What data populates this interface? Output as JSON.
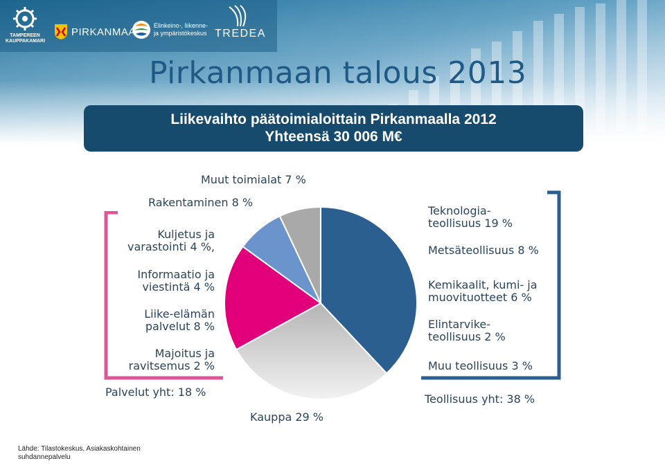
{
  "header": {
    "logos": [
      {
        "icon": "tampere-chamber-logo-icon",
        "text": "TAMPEREEN KAUPPAKAMARI"
      },
      {
        "icon": "pirkanmaa-crest-icon",
        "text": "PIRKANMAA"
      },
      {
        "icon": "ely-centre-logo-icon",
        "text": "Elinkeino-, liikenne- ja ympäristökeskus"
      },
      {
        "icon": "tredea-logo-icon",
        "text": "TREDEA"
      }
    ],
    "title": "Pirkanmaan talous 2013"
  },
  "banner": {
    "line1": "Liikevaihto päätoimialoittain Pirkanmaalla 2012",
    "line2": "Yhteensä 30 006 M€"
  },
  "colors": {
    "banner": "#174b6d",
    "teollisuus": "#2a5f8f",
    "kauppa": "#c8c8c8",
    "palvelut": "#e2007a",
    "rakentaminen": "#6b93cc",
    "muut": "#a9a9a9",
    "palvelut_bracket": "#e0559a",
    "teollisuus_bracket": "#2a5f8f"
  },
  "chart_data": {
    "type": "pie",
    "title": "Liikevaihto päätoimialoittain Pirkanmaalla 2012",
    "subtitle": "Yhteensä 30 006 M€",
    "slices": [
      {
        "label": "Teollisuus yht: 38 %",
        "value": 38
      },
      {
        "label": "Kauppa 29 %",
        "value": 29
      },
      {
        "label": "Palvelut yht: 18 %",
        "value": 18
      },
      {
        "label": "Rakentaminen 8 %",
        "value": 8
      },
      {
        "label": "Muut toimialat 7 %",
        "value": 7
      }
    ],
    "palvelut_breakdown": [
      {
        "label": "Kuljetus ja varastointi 4 %,",
        "value": 4
      },
      {
        "label": "Informaatio ja viestintä 4 %",
        "value": 4
      },
      {
        "label": "Liike-elämän palvelut 8 %",
        "value": 8
      },
      {
        "label": "Majoitus ja ravitsemus 2 %",
        "value": 2
      }
    ],
    "teollisuus_breakdown": [
      {
        "label": "Teknologia-teollisuus 19 %",
        "value": 19
      },
      {
        "label": "Metsäteollisuus 8 %",
        "value": 8
      },
      {
        "label": "Kemikaalit, kumi- ja muovituotteet 6 %",
        "value": 6
      },
      {
        "label": "Elintarvike-teollisuus 2 %",
        "value": 2
      },
      {
        "label": "Muu teollisuus 3 %",
        "value": 3
      }
    ]
  },
  "labels": {
    "muut": "Muut toimialat 7 %",
    "rakentaminen": "Rakentaminen 8 %",
    "kuljetus_1": "Kuljetus ja",
    "kuljetus_2": "varastointi 4 %,",
    "informaatio_1": "Informaatio ja",
    "informaatio_2": "viestintä 4 %",
    "liike_1": "Liike-elämän",
    "liike_2": "palvelut 8 %",
    "majoitus_1": "Majoitus ja",
    "majoitus_2": "ravitsemus 2 %",
    "palvelut_total": "Palvelut yht: 18 %",
    "kauppa": "Kauppa 29 %",
    "teknologia_1": "Teknologia-",
    "teknologia_2": "teollisuus 19 %",
    "metsa": "Metsäteollisuus  8 %",
    "kemikaalit_1": "Kemikaalit, kumi- ja",
    "kemikaalit_2": "muovituotteet 6 %",
    "elintarvike_1": "Elintarvike-",
    "elintarvike_2": "teollisuus 2 %",
    "muu_teollisuus": "Muu teollisuus 3 %",
    "teollisuus_total": "Teollisuus yht: 38 %"
  },
  "source": {
    "line1": "Lähde: Tilastokeskus, Asiakaskohtainen",
    "line2": "suhdannepalvelu"
  }
}
